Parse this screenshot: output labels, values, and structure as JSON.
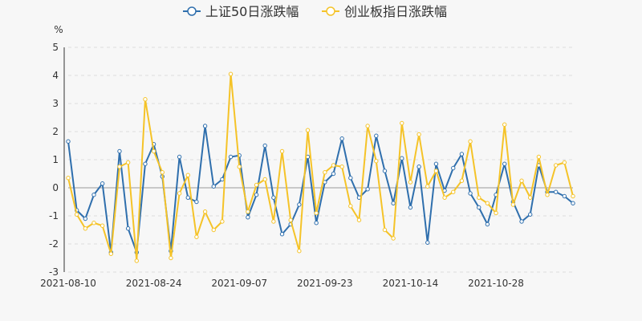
{
  "chart_data": {
    "type": "line",
    "unit_label": "%",
    "ylim": [
      -3,
      5
    ],
    "yticks": [
      -3,
      -2,
      -1,
      0,
      1,
      2,
      3,
      4,
      5
    ],
    "x_tick_labels": [
      "2021-08-10",
      "2021-08-24",
      "2021-09-07",
      "2021-09-23",
      "2021-10-14",
      "2021-10-28"
    ],
    "x_tick_index": [
      0,
      10,
      20,
      30,
      40,
      50
    ],
    "legend_position": "top-center",
    "grid": "horizontal-dashed",
    "colors": {
      "series1": "#2f6fad",
      "series2": "#f5c328",
      "grid": "#dddddd",
      "axis": "#333333"
    },
    "series": [
      {
        "name": "上证50日涨跌幅",
        "values": [
          1.65,
          -0.8,
          -1.1,
          -0.25,
          0.15,
          -2.3,
          1.3,
          -1.45,
          -2.3,
          0.85,
          1.55,
          0.4,
          -2.25,
          1.1,
          -0.35,
          -0.5,
          2.2,
          0.05,
          0.3,
          1.1,
          1.15,
          -1.05,
          -0.25,
          1.5,
          -0.35,
          -1.65,
          -1.3,
          -0.6,
          1.1,
          -1.25,
          0.2,
          0.5,
          1.75,
          0.35,
          -0.35,
          -0.05,
          1.85,
          0.6,
          -0.55,
          1.05,
          -0.7,
          0.75,
          -1.95,
          0.85,
          -0.1,
          0.7,
          1.2,
          -0.2,
          -0.7,
          -1.3,
          -0.25,
          0.85,
          -0.5,
          -1.2,
          -0.95,
          0.8,
          -0.15,
          -0.15,
          -0.3,
          -0.55
        ]
      },
      {
        "name": "创业板指日涨跌幅",
        "values": [
          0.35,
          -0.95,
          -1.45,
          -1.25,
          -1.35,
          -2.35,
          0.75,
          0.9,
          -2.6,
          3.15,
          1.3,
          0.55,
          -2.5,
          -0.2,
          0.45,
          -1.75,
          -0.85,
          -1.5,
          -1.2,
          4.05,
          0.75,
          -0.85,
          0.1,
          0.3,
          -1.2,
          1.3,
          -1.15,
          -2.25,
          2.05,
          -0.9,
          0.55,
          0.8,
          0.75,
          -0.65,
          -1.15,
          2.2,
          0.95,
          -1.5,
          -1.8,
          2.3,
          0.2,
          1.9,
          0.05,
          0.6,
          -0.35,
          -0.15,
          0.25,
          1.65,
          -0.35,
          -0.55,
          -0.9,
          2.25,
          -0.6,
          0.25,
          -0.35,
          1.1,
          -0.25,
          0.8,
          0.9,
          -0.3
        ]
      }
    ]
  }
}
